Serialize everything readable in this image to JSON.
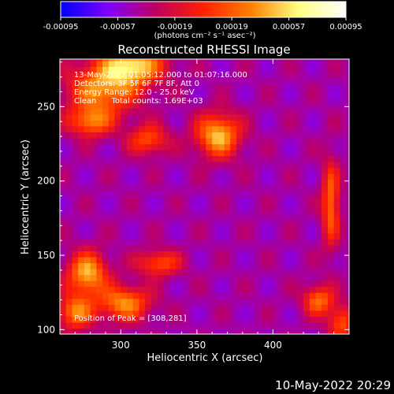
{
  "chart_data": {
    "type": "heatmap",
    "title": "Reconstructed RHESSI Image",
    "xlabel": "Heliocentric X (arcsec)",
    "ylabel": "Heliocentric Y (arcsec)",
    "xlim": [
      260,
      450
    ],
    "ylim": [
      97,
      282
    ],
    "xticks": [
      "300",
      "350",
      "400"
    ],
    "yticks": [
      "100",
      "150",
      "200",
      "250"
    ],
    "colorbar": {
      "min": -0.00095,
      "max": 0.00095,
      "tick_labels": [
        "-0.00095",
        "-0.00057",
        "-0.00019",
        "0.00019",
        "0.00057",
        "0.00095"
      ],
      "units_label": "(photons cm⁻² s⁻¹ asec⁻²)",
      "colors": [
        "#0000ff",
        "#8000ff",
        "#c00060",
        "#ff2000",
        "#ff8000",
        "#ffff80",
        "#ffffff"
      ]
    },
    "annotations": [
      "13-May-2022 01:05:12.000 to 01:07:16.000",
      "Detectors: 3F 5F 6F 7F 8F, Att 0",
      "Energy Range: 12.0 - 25.0 keV",
      "Clean      Total counts: 1.69E+03"
    ],
    "peak_label": "Position of Peak = [308,281]",
    "peak_position": [
      308,
      281
    ],
    "sources": [
      {
        "x": 308,
        "y": 278,
        "amp": 0.001,
        "sx": 14,
        "sy": 9
      },
      {
        "x": 288,
        "y": 262,
        "amp": 0.0008,
        "sx": 16,
        "sy": 12
      },
      {
        "x": 364,
        "y": 231,
        "amp": 0.00095,
        "sx": 10,
        "sy": 10
      },
      {
        "x": 280,
        "y": 240,
        "amp": 0.0007,
        "sx": 10,
        "sy": 7
      },
      {
        "x": 318,
        "y": 228,
        "amp": 0.0006,
        "sx": 9,
        "sy": 7
      },
      {
        "x": 278,
        "y": 138,
        "amp": 0.00092,
        "sx": 9,
        "sy": 10
      },
      {
        "x": 302,
        "y": 118,
        "amp": 0.0008,
        "sx": 12,
        "sy": 8
      },
      {
        "x": 270,
        "y": 112,
        "amp": 0.00075,
        "sx": 8,
        "sy": 8
      },
      {
        "x": 325,
        "y": 145,
        "amp": 0.0006,
        "sx": 10,
        "sy": 6
      },
      {
        "x": 438,
        "y": 185,
        "amp": 0.0007,
        "sx": 4,
        "sy": 20
      },
      {
        "x": 430,
        "y": 120,
        "amp": 0.0007,
        "sx": 7,
        "sy": 7
      },
      {
        "x": 445,
        "y": 105,
        "amp": 0.0006,
        "sx": 6,
        "sy": 8
      }
    ]
  },
  "footer": {
    "date": "10-May-2022 20:29"
  }
}
